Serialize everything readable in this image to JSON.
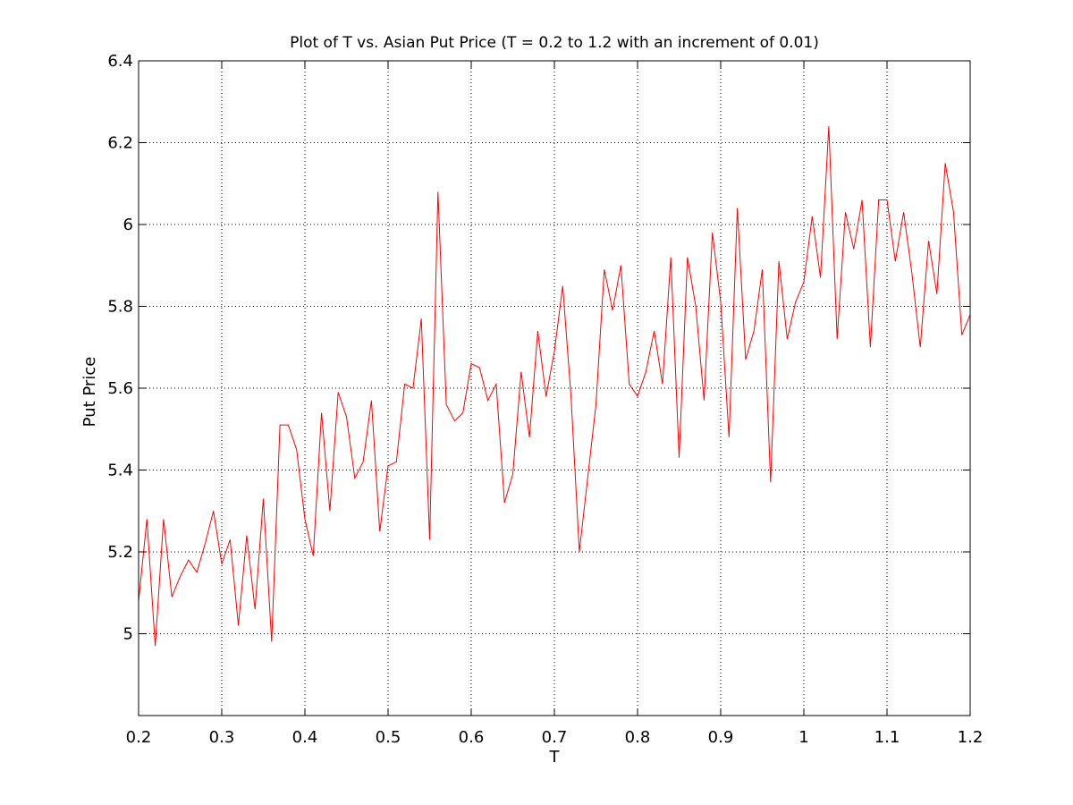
{
  "chart_data": {
    "type": "line",
    "title": "Plot of T vs. Asian Put Price (T = 0.2 to 1.2 with an increment of 0.01)",
    "xlabel": "T",
    "ylabel": "Put Price",
    "xlim": [
      0.2,
      1.2
    ],
    "ylim": [
      4.8,
      6.4
    ],
    "xticks": [
      0.2,
      0.3,
      0.4,
      0.5,
      0.6,
      0.7,
      0.8,
      0.9,
      1.0,
      1.1,
      1.2
    ],
    "xtick_labels": [
      "0.2",
      "0.3",
      "0.4",
      "0.5",
      "0.6",
      "0.7",
      "0.8",
      "0.9",
      "1",
      "1.1",
      "1.2"
    ],
    "yticks": [
      5.0,
      5.2,
      5.4,
      5.6,
      5.8,
      6.0,
      6.2,
      6.4
    ],
    "ytick_labels": [
      "5",
      "5.2",
      "5.4",
      "5.6",
      "5.8",
      "6",
      "6.2",
      "6.4"
    ],
    "grid": true,
    "grid_style": "dotted",
    "series": [
      {
        "color": "#ff0000",
        "x": [
          0.2,
          0.21,
          0.22,
          0.23,
          0.24,
          0.25,
          0.26,
          0.27,
          0.28,
          0.29,
          0.3,
          0.31,
          0.32,
          0.33,
          0.34,
          0.35,
          0.36,
          0.37,
          0.38,
          0.39,
          0.4,
          0.41,
          0.42,
          0.43,
          0.44,
          0.45,
          0.46,
          0.47,
          0.48,
          0.49,
          0.5,
          0.51,
          0.52,
          0.53,
          0.54,
          0.55,
          0.56,
          0.57,
          0.58,
          0.59,
          0.6,
          0.61,
          0.62,
          0.63,
          0.64,
          0.65,
          0.66,
          0.67,
          0.68,
          0.69,
          0.7,
          0.71,
          0.72,
          0.73,
          0.74,
          0.75,
          0.76,
          0.77,
          0.78,
          0.79,
          0.8,
          0.81,
          0.82,
          0.83,
          0.84,
          0.85,
          0.86,
          0.87,
          0.88,
          0.89,
          0.9,
          0.91,
          0.92,
          0.93,
          0.94,
          0.95,
          0.96,
          0.97,
          0.98,
          0.99,
          1.0,
          1.01,
          1.02,
          1.03,
          1.04,
          1.05,
          1.06,
          1.07,
          1.08,
          1.09,
          1.1,
          1.11,
          1.12,
          1.13,
          1.14,
          1.15,
          1.16,
          1.17,
          1.18,
          1.19,
          1.2
        ],
        "values": [
          5.08,
          5.28,
          4.97,
          5.28,
          5.09,
          5.14,
          5.18,
          5.15,
          5.22,
          5.3,
          5.17,
          5.23,
          5.02,
          5.24,
          5.06,
          5.33,
          4.98,
          5.51,
          5.51,
          5.45,
          5.28,
          5.19,
          5.54,
          5.3,
          5.59,
          5.53,
          5.38,
          5.42,
          5.57,
          5.25,
          5.41,
          5.42,
          5.61,
          5.6,
          5.77,
          5.23,
          6.08,
          5.56,
          5.52,
          5.54,
          5.66,
          5.65,
          5.57,
          5.61,
          5.32,
          5.39,
          5.64,
          5.48,
          5.74,
          5.58,
          5.69,
          5.85,
          5.58,
          5.2,
          5.38,
          5.56,
          5.89,
          5.79,
          5.9,
          5.61,
          5.58,
          5.64,
          5.74,
          5.61,
          5.92,
          5.43,
          5.92,
          5.8,
          5.57,
          5.98,
          5.81,
          5.48,
          6.04,
          5.67,
          5.74,
          5.89,
          5.37,
          5.91,
          5.72,
          5.81,
          5.86,
          6.02,
          5.87,
          6.24,
          5.72,
          6.03,
          5.94,
          6.06,
          5.7,
          6.06,
          6.06,
          5.91,
          6.03,
          5.88,
          5.7,
          5.96,
          5.83,
          6.15,
          6.03,
          5.73,
          5.78
        ]
      }
    ]
  }
}
